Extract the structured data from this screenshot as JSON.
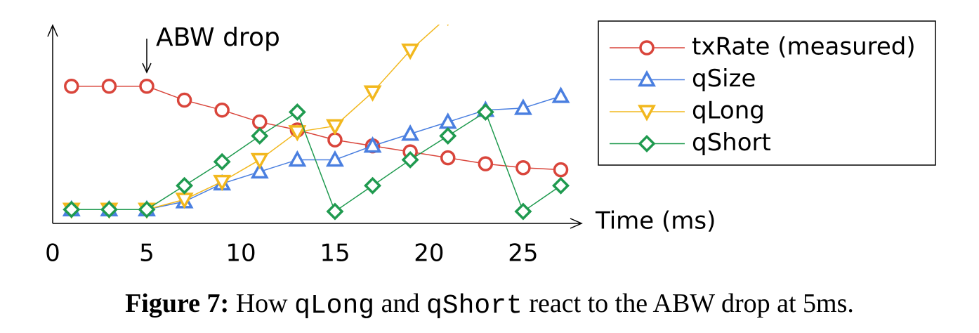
{
  "chart_data": {
    "type": "line",
    "annotation": "ABW drop",
    "annotation_x": 5,
    "x_label": "Time (ms)",
    "caption_label": "Figure 7:",
    "caption": [
      "How ",
      "qLong",
      " and ",
      "qShort",
      " react to the ABW drop at 5ms."
    ],
    "x": [
      1,
      3,
      5,
      7,
      9,
      11,
      13,
      15,
      17,
      19,
      21,
      23,
      25,
      27
    ],
    "xlim": [
      0,
      28.1
    ],
    "xticks": [
      0,
      5,
      10,
      15,
      20,
      25
    ],
    "ylim": [
      0,
      100
    ],
    "legend": "upper right",
    "series": [
      {
        "name": "txRate (measured)",
        "color": "#d9453b",
        "marker": "circle",
        "values": [
          69,
          69,
          69,
          62,
          57,
          51,
          47,
          42,
          39,
          36,
          33,
          30,
          28,
          27
        ]
      },
      {
        "name": "qSize",
        "color": "#4a7fe0",
        "marker": "triangle-up",
        "values": [
          7,
          7,
          7,
          11,
          20,
          26,
          32,
          32,
          39,
          45,
          51,
          57,
          58,
          64
        ]
      },
      {
        "name": "qLong",
        "color": "#f2b81e",
        "marker": "triangle-down",
        "values": [
          7,
          7,
          7,
          12,
          21,
          32,
          46,
          49,
          66,
          87,
          104,
          null,
          null,
          null
        ]
      },
      {
        "name": "qShort",
        "color": "#1f9a4f",
        "marker": "diamond",
        "values": [
          7,
          7,
          7,
          19,
          31,
          44,
          56,
          6,
          19,
          32,
          44,
          56,
          6,
          19
        ]
      }
    ]
  }
}
